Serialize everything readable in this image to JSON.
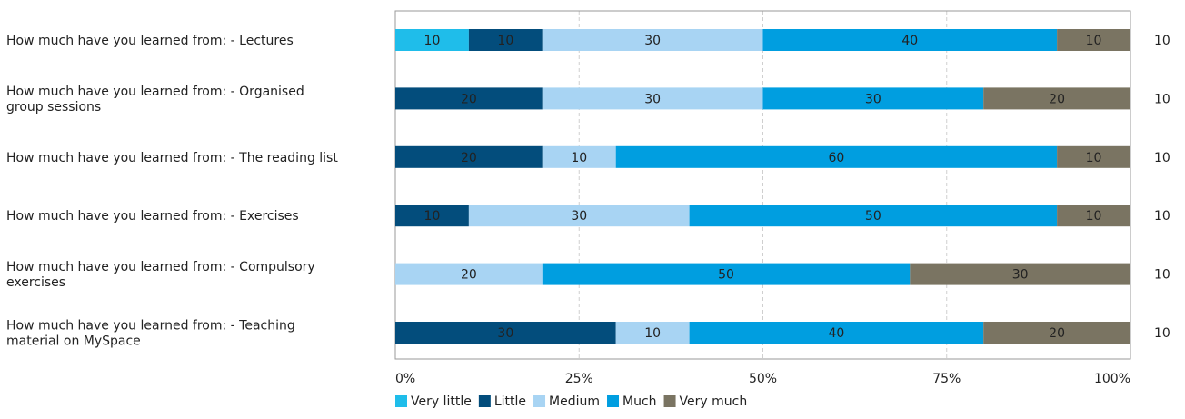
{
  "chart_data": {
    "type": "bar",
    "orientation": "horizontal",
    "stacked": true,
    "percent_scale": true,
    "categories": [
      [
        "How much have you learned from: - Lectures"
      ],
      [
        "How much have you learned from: - Organised",
        "group sessions"
      ],
      [
        "How much have you learned from: - The reading list"
      ],
      [
        "How much have you learned from: - Exercises"
      ],
      [
        "How much have you learned from: - Compulsory",
        "exercises"
      ],
      [
        "How much have you learned from: - Teaching",
        "material on MySpace"
      ]
    ],
    "series": [
      {
        "name": "Very little",
        "color": "#1fbdea",
        "values": [
          10,
          0,
          0,
          0,
          0,
          0
        ]
      },
      {
        "name": "Little",
        "color": "#034d7c",
        "values": [
          10,
          20,
          20,
          10,
          0,
          30
        ]
      },
      {
        "name": "Medium",
        "color": "#a8d4f3",
        "values": [
          30,
          30,
          10,
          30,
          20,
          10
        ]
      },
      {
        "name": "Much",
        "color": "#009ee0",
        "values": [
          40,
          30,
          60,
          50,
          50,
          40
        ]
      },
      {
        "name": "Very much",
        "color": "#7a7462",
        "values": [
          10,
          20,
          10,
          10,
          30,
          20
        ]
      }
    ],
    "counts": [
      "10",
      "10",
      "10",
      "10",
      "10",
      "10"
    ],
    "x_ticks": [
      "0%",
      "25%",
      "50%",
      "75%",
      "100%"
    ],
    "xlim": [
      0,
      100
    ],
    "grid": "vertical-dashed",
    "legend_position": "bottom"
  }
}
